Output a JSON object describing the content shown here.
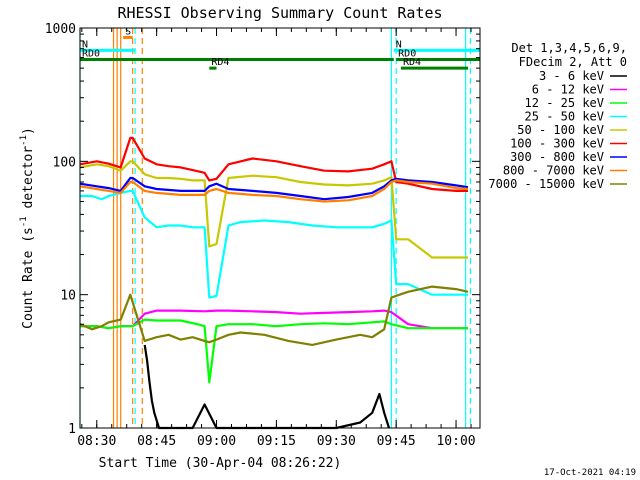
{
  "chart_data": {
    "type": "line",
    "title": "RHESSI Observing Summary Count Rates",
    "xlabel": "Start Time (30-Apr-04 08:26:22)",
    "ylabel_main": "Count Rate (s",
    "ylabel_sup1": "-1",
    "ylabel_mid": " detector",
    "ylabel_sup2": "-1",
    "ylabel_end": ")",
    "y_scale": "log",
    "ylim": [
      1,
      1000
    ],
    "xlim_minutes": [
      8.43,
      10.1
    ],
    "y_ticks": [
      1,
      10,
      100,
      1000
    ],
    "y_tick_labels": [
      "1",
      "10",
      "100",
      "1000"
    ],
    "x_ticks": [
      8.5,
      8.75,
      9.0,
      9.25,
      9.5,
      9.75,
      10.0
    ],
    "x_tick_labels": [
      "08:30",
      "08:45",
      "09:00",
      "09:15",
      "09:30",
      "09:45",
      "10:00"
    ],
    "grid": false,
    "legend_placement": "right",
    "legend_header": [
      "Det 1,3,4,5,6,9,",
      "FDecim 2, Att 0"
    ],
    "timestamp": "17-Oct-2021 04:19",
    "flags": [
      {
        "label": "S",
        "color": "#ff7f00",
        "y": 850,
        "start": 8.61,
        "end": 8.65
      },
      {
        "label": "N",
        "color": "#00ffff",
        "y": 680,
        "start": 8.43,
        "end": 8.66
      },
      {
        "label": "N",
        "color": "#00ffff",
        "y": 680,
        "start": 9.74,
        "end": 10.1
      },
      {
        "label": "RD0",
        "color": "#008000",
        "y": 580,
        "start": 8.43,
        "end": 9.74
      },
      {
        "label": "RD0",
        "color": "#008000",
        "y": 580,
        "start": 9.75,
        "end": 10.1
      },
      {
        "label": "RD4",
        "color": "#008000",
        "y": 500,
        "start": 8.97,
        "end": 9.0
      },
      {
        "label": "RD4",
        "color": "#008000",
        "y": 500,
        "start": 9.77,
        "end": 10.05
      }
    ],
    "vertical_lines": [
      {
        "x": 8.43,
        "color": "#00ffff",
        "dash": false
      },
      {
        "x": 8.57,
        "color": "#ff7f00",
        "dash": false
      },
      {
        "x": 8.585,
        "color": "#ff7f00",
        "dash": false
      },
      {
        "x": 8.6,
        "color": "#ff7f00",
        "dash": false
      },
      {
        "x": 8.65,
        "color": "#ff7f00",
        "dash": true
      },
      {
        "x": 8.66,
        "color": "#00ffff",
        "dash": true
      },
      {
        "x": 8.69,
        "color": "#ff7f00",
        "dash": true
      },
      {
        "x": 9.73,
        "color": "#00ffff",
        "dash": false
      },
      {
        "x": 9.75,
        "color": "#00ffff",
        "dash": true
      },
      {
        "x": 10.04,
        "color": "#00ffff",
        "dash": false
      },
      {
        "x": 10.06,
        "color": "#00ffff",
        "dash": true
      }
    ],
    "series": [
      {
        "name": "3 - 6 keV",
        "color": "#000000",
        "x": [
          8.7,
          8.71,
          8.72,
          8.73,
          8.74,
          8.76,
          8.8,
          8.85,
          8.9,
          8.95,
          9.0,
          9.05,
          9.1,
          9.2,
          9.3,
          9.4,
          9.5,
          9.6,
          9.65,
          9.68,
          9.7,
          9.72
        ],
        "y": [
          4.2,
          3.2,
          2.2,
          1.6,
          1.3,
          1.0,
          1.0,
          1.0,
          1.0,
          1.5,
          1.0,
          1.0,
          1.0,
          1.0,
          1.0,
          1.0,
          1.0,
          1.1,
          1.3,
          1.8,
          1.3,
          1.0
        ]
      },
      {
        "name": "6 - 12 keV",
        "color": "#ff00ff",
        "x": [
          8.43,
          8.5,
          8.55,
          8.6,
          8.65,
          8.7,
          8.75,
          8.85,
          8.95,
          9.0,
          9.05,
          9.15,
          9.25,
          9.35,
          9.45,
          9.55,
          9.65,
          9.7,
          9.73,
          9.8,
          9.9,
          10.0,
          10.05
        ],
        "y": [
          5.8,
          5.8,
          5.6,
          5.8,
          5.8,
          7.2,
          7.6,
          7.6,
          7.5,
          7.6,
          7.6,
          7.5,
          7.4,
          7.2,
          7.3,
          7.4,
          7.5,
          7.6,
          7.4,
          6.0,
          5.6,
          5.6,
          5.6
        ]
      },
      {
        "name": "12 - 25 keV",
        "color": "#00ff00",
        "x": [
          8.43,
          8.5,
          8.55,
          8.6,
          8.65,
          8.7,
          8.75,
          8.85,
          8.92,
          8.95,
          8.97,
          9.0,
          9.05,
          9.15,
          9.25,
          9.35,
          9.45,
          9.55,
          9.65,
          9.7,
          9.73,
          9.8,
          9.9,
          10.0,
          10.05
        ],
        "y": [
          5.8,
          5.8,
          5.6,
          5.8,
          5.8,
          6.5,
          6.4,
          6.4,
          6.0,
          5.8,
          2.2,
          5.8,
          6.0,
          6.0,
          5.8,
          6.0,
          6.1,
          6.0,
          6.2,
          6.3,
          6.0,
          5.6,
          5.6,
          5.6,
          5.6
        ]
      },
      {
        "name": "25 - 50 keV",
        "color": "#00ffff",
        "x": [
          8.43,
          8.48,
          8.52,
          8.55,
          8.6,
          8.64,
          8.65,
          8.7,
          8.75,
          8.8,
          8.85,
          8.9,
          8.95,
          8.97,
          9.0,
          9.05,
          9.1,
          9.2,
          9.3,
          9.4,
          9.5,
          9.6,
          9.65,
          9.7,
          9.73,
          9.75,
          9.8,
          9.9,
          10.0,
          10.05
        ],
        "y": [
          55,
          55,
          52,
          55,
          58,
          60,
          60,
          38,
          32,
          33,
          33,
          32,
          32,
          9.5,
          9.8,
          33,
          35,
          36,
          35,
          33,
          32,
          32,
          32,
          34,
          36,
          12,
          12,
          10,
          10,
          10
        ]
      },
      {
        "name": "50 - 100 keV",
        "color": "#c8c800",
        "x": [
          8.43,
          8.5,
          8.55,
          8.6,
          8.64,
          8.65,
          8.7,
          8.75,
          8.8,
          8.85,
          8.9,
          8.95,
          8.97,
          9.0,
          9.05,
          9.15,
          9.25,
          9.35,
          9.45,
          9.55,
          9.65,
          9.7,
          9.73,
          9.75,
          9.8,
          9.9,
          10.0,
          10.05
        ],
        "y": [
          90,
          95,
          92,
          85,
          100,
          100,
          80,
          75,
          75,
          74,
          72,
          72,
          23,
          24,
          75,
          78,
          76,
          70,
          67,
          66,
          68,
          72,
          76,
          26,
          26,
          19,
          19,
          19
        ]
      },
      {
        "name": "100 - 300 keV",
        "color": "#ff0000",
        "x": [
          8.43,
          8.5,
          8.55,
          8.6,
          8.64,
          8.65,
          8.7,
          8.75,
          8.8,
          8.85,
          8.9,
          8.95,
          8.97,
          9.0,
          9.05,
          9.15,
          9.25,
          9.35,
          9.45,
          9.55,
          9.65,
          9.7,
          9.73,
          9.75,
          9.8,
          9.9,
          10.0,
          10.05
        ],
        "y": [
          95,
          100,
          96,
          90,
          150,
          150,
          105,
          95,
          92,
          90,
          86,
          82,
          72,
          74,
          95,
          105,
          100,
          92,
          85,
          84,
          88,
          95,
          100,
          70,
          68,
          62,
          60,
          60
        ]
      },
      {
        "name": "300 - 800 keV",
        "color": "#0000ff",
        "x": [
          8.43,
          8.5,
          8.55,
          8.6,
          8.64,
          8.65,
          8.7,
          8.75,
          8.85,
          8.95,
          8.97,
          9.0,
          9.05,
          9.15,
          9.25,
          9.35,
          9.45,
          9.55,
          9.65,
          9.7,
          9.73,
          9.75,
          9.8,
          9.9,
          10.0,
          10.05
        ],
        "y": [
          68,
          65,
          63,
          60,
          75,
          75,
          65,
          62,
          60,
          60,
          65,
          68,
          62,
          60,
          58,
          55,
          52,
          54,
          58,
          65,
          72,
          74,
          72,
          70,
          66,
          64
        ]
      },
      {
        "name": "800 - 7000 keV",
        "color": "#ff7f00",
        "x": [
          8.43,
          8.5,
          8.55,
          8.6,
          8.64,
          8.65,
          8.7,
          8.75,
          8.85,
          8.95,
          8.97,
          9.0,
          9.05,
          9.15,
          9.25,
          9.35,
          9.45,
          9.55,
          9.65,
          9.7,
          9.73,
          9.75,
          9.8,
          9.9,
          10.0,
          10.05
        ],
        "y": [
          65,
          62,
          60,
          58,
          70,
          70,
          60,
          58,
          56,
          56,
          60,
          62,
          58,
          56,
          55,
          52,
          50,
          51,
          55,
          62,
          70,
          72,
          70,
          68,
          63,
          62
        ]
      },
      {
        "name": "7000 - 15000 keV",
        "color": "#808000",
        "x": [
          8.43,
          8.48,
          8.52,
          8.55,
          8.6,
          8.64,
          8.7,
          8.75,
          8.8,
          8.85,
          8.9,
          8.95,
          8.97,
          9.0,
          9.05,
          9.1,
          9.2,
          9.3,
          9.4,
          9.5,
          9.6,
          9.65,
          9.7,
          9.73,
          9.75,
          9.8,
          9.9,
          10.0,
          10.05
        ],
        "y": [
          6.0,
          5.5,
          5.8,
          6.2,
          6.5,
          10,
          4.5,
          4.8,
          5.0,
          4.6,
          4.8,
          4.5,
          4.4,
          4.6,
          5.0,
          5.2,
          5.0,
          4.5,
          4.2,
          4.6,
          5.0,
          4.8,
          5.5,
          9.5,
          9.8,
          10.5,
          11.5,
          11,
          10.5
        ]
      }
    ]
  }
}
